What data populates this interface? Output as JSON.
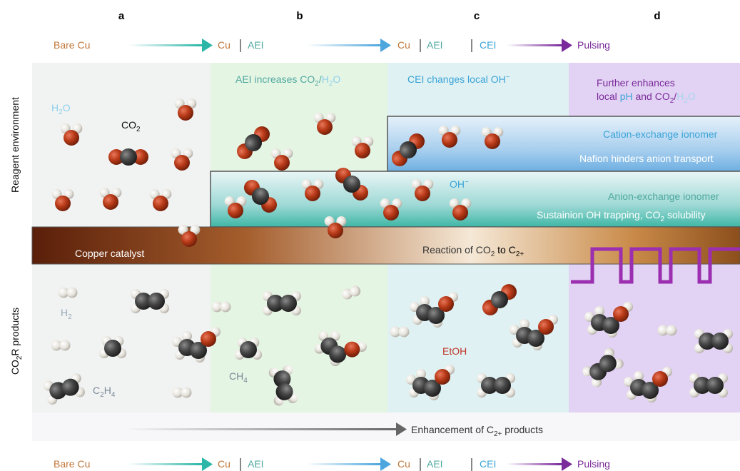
{
  "panels": [
    "a",
    "b",
    "c",
    "d"
  ],
  "stages": {
    "bare_cu": "Bare Cu",
    "cu": "Cu",
    "aei": "AEI",
    "cei": "CEI",
    "pulsing": "Pulsing"
  },
  "row_labels": {
    "reagent": "Reagent environment",
    "products": [
      "CO",
      "2",
      "R products"
    ]
  },
  "headings": {
    "b": [
      "AEI increases CO",
      "2",
      "/",
      "H",
      "2",
      "O"
    ],
    "c": [
      "CEI changes local OH",
      "−"
    ],
    "d": [
      "Further enhances",
      "local ",
      "pH",
      " and CO",
      "2",
      "/",
      "H",
      "2",
      "O"
    ]
  },
  "labels": {
    "h2o": [
      "H",
      "2",
      "O"
    ],
    "co2": [
      "CO",
      "2"
    ],
    "oh": [
      "OH",
      "−"
    ],
    "cation_ionomer": "Cation-exchange ionomer",
    "nafion": "Nafion hinders anion transport",
    "anion_ionomer": "Anion-exchange ionomer",
    "sustainion": [
      "Sustainion OH trapping, CO",
      "2",
      " solubility"
    ],
    "catalyst": "Copper catalyst",
    "reaction": [
      "Reaction of CO",
      "2",
      " to C",
      "2+"
    ],
    "h2": [
      "H",
      "2"
    ],
    "ch4": [
      "CH",
      "4"
    ],
    "c2h4": [
      "C",
      "2",
      "H",
      "4"
    ],
    "etoh": "EtOH",
    "enhancement": [
      "Enhancement of C",
      "2+",
      " products"
    ]
  }
}
